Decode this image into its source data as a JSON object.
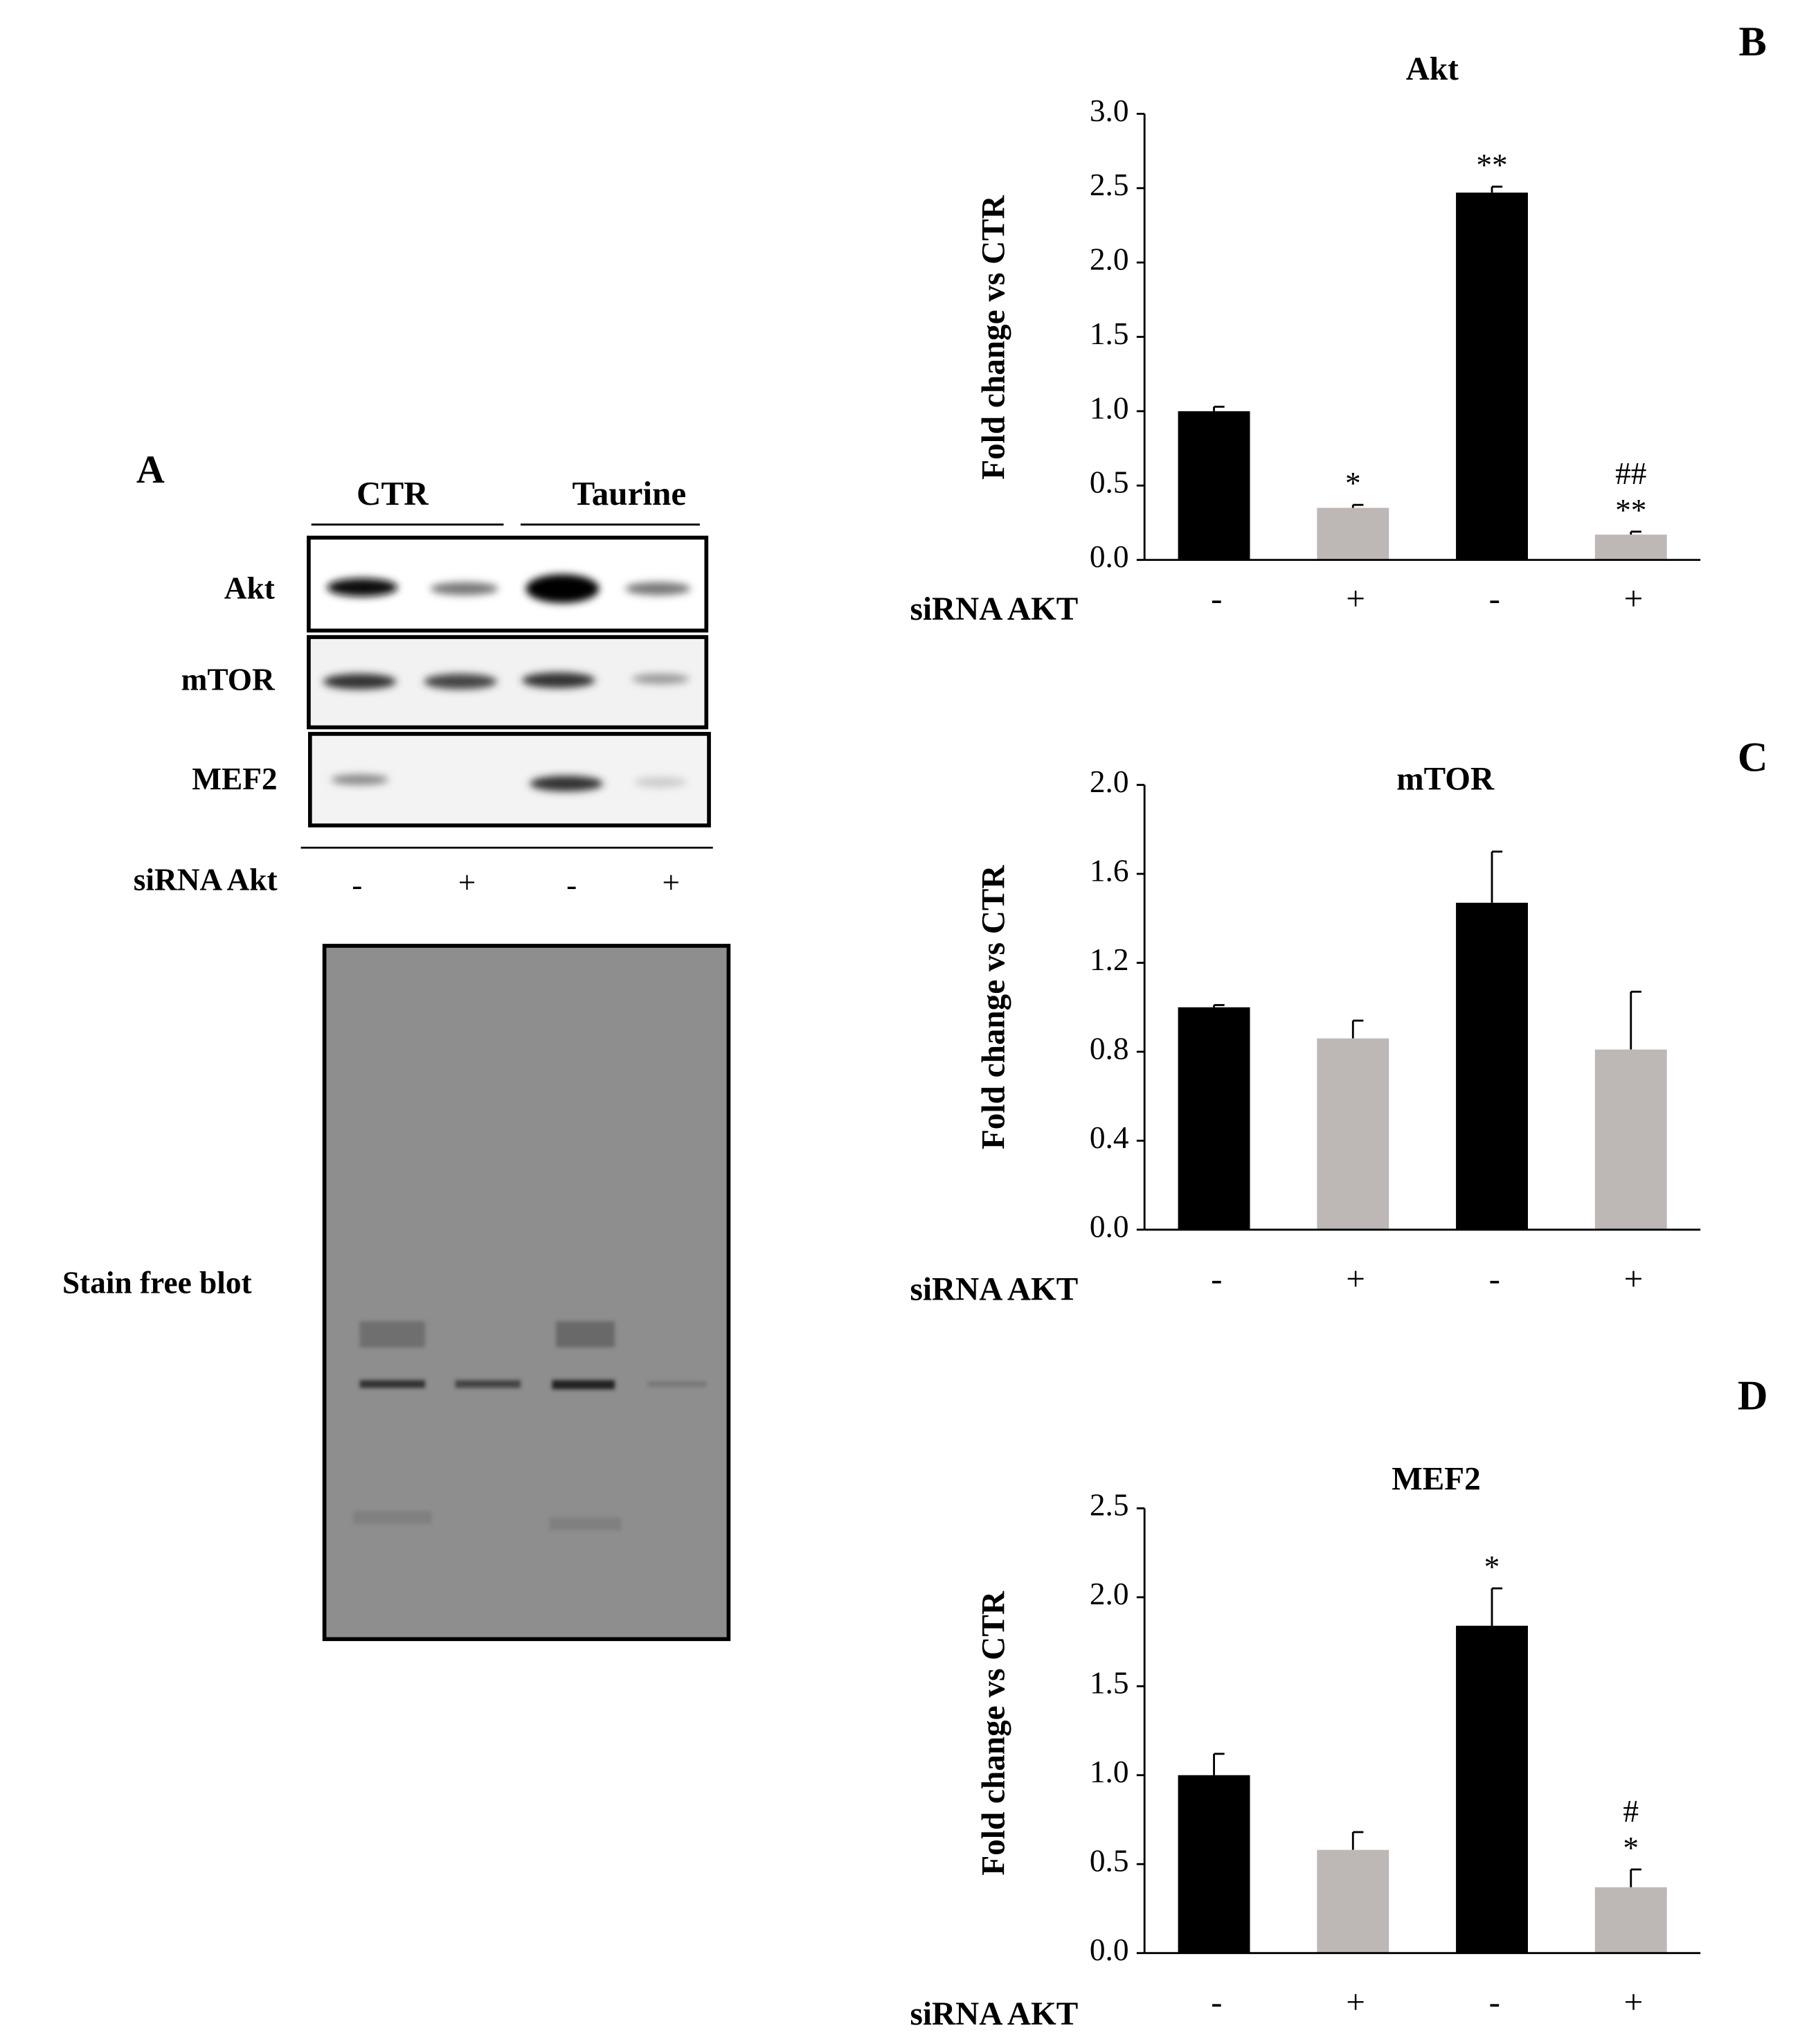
{
  "panel_a": {
    "label": "A",
    "groups": [
      "CTR",
      "Taurine"
    ],
    "rows": [
      "Akt",
      "mTOR",
      "MEF2"
    ],
    "treatment_label": "siRNA Akt",
    "lanes": [
      "-",
      "+",
      "-",
      "+"
    ],
    "loading_label": "Stain free blot"
  },
  "chart_data": [
    {
      "type": "bar",
      "panel": "B",
      "title": "Akt",
      "ylabel": "Fold change vs CTR",
      "xlabel": "siRNA AKT",
      "categories": [
        "-",
        "+",
        "-",
        "+"
      ],
      "values": [
        1.0,
        0.35,
        2.47,
        0.17
      ],
      "errors": [
        0.03,
        0.02,
        0.04,
        0.02
      ],
      "colors": [
        "#000000",
        "#bdb8b6",
        "#000000",
        "#bdb8b6"
      ],
      "annotations": [
        [],
        [
          "*"
        ],
        [
          "**"
        ],
        [
          "##",
          "**"
        ]
      ],
      "ylim": [
        0,
        3
      ],
      "yticks": [
        {
          "value": 0,
          "label": "0.0"
        },
        0.5,
        {
          "value": 1,
          "label": "1.0"
        },
        1.5,
        {
          "value": 2,
          "label": "2.0"
        },
        2.5,
        {
          "value": 3,
          "label": "3.0"
        }
      ]
    },
    {
      "type": "bar",
      "panel": "C",
      "title": "mTOR",
      "ylabel": "Fold change vs CTR",
      "xlabel": "siRNA AKT",
      "categories": [
        "-",
        "+",
        "-",
        "+"
      ],
      "values": [
        1.0,
        0.86,
        1.47,
        0.81
      ],
      "errors": [
        0.01,
        0.08,
        0.23,
        0.26
      ],
      "colors": [
        "#000000",
        "#bdb8b6",
        "#000000",
        "#bdb8b6"
      ],
      "annotations": [
        [],
        [],
        [],
        []
      ],
      "ylim": [
        0,
        2
      ],
      "yticks": [
        {
          "value": 0,
          "label": "0.0"
        },
        0.4,
        0.8,
        1.2,
        1.6,
        {
          "value": 2,
          "label": "2.0"
        }
      ]
    },
    {
      "type": "bar",
      "panel": "D",
      "title": "MEF2",
      "ylabel": "Fold change vs CTR",
      "xlabel": "siRNA AKT",
      "categories": [
        "-",
        "+",
        "-",
        "+"
      ],
      "values": [
        1.0,
        0.58,
        1.84,
        0.37
      ],
      "errors": [
        0.12,
        0.1,
        0.21,
        0.1
      ],
      "colors": [
        "#000000",
        "#bdb8b6",
        "#000000",
        "#bdb8b6"
      ],
      "annotations": [
        [],
        [],
        [
          "*"
        ],
        [
          "#",
          "*"
        ]
      ],
      "ylim": [
        0,
        2.5
      ],
      "yticks": [
        {
          "value": 0,
          "label": "0.0"
        },
        0.5,
        {
          "value": 1,
          "label": "1.0"
        },
        1.5,
        {
          "value": 2,
          "label": "2.0"
        },
        2.5
      ]
    }
  ]
}
